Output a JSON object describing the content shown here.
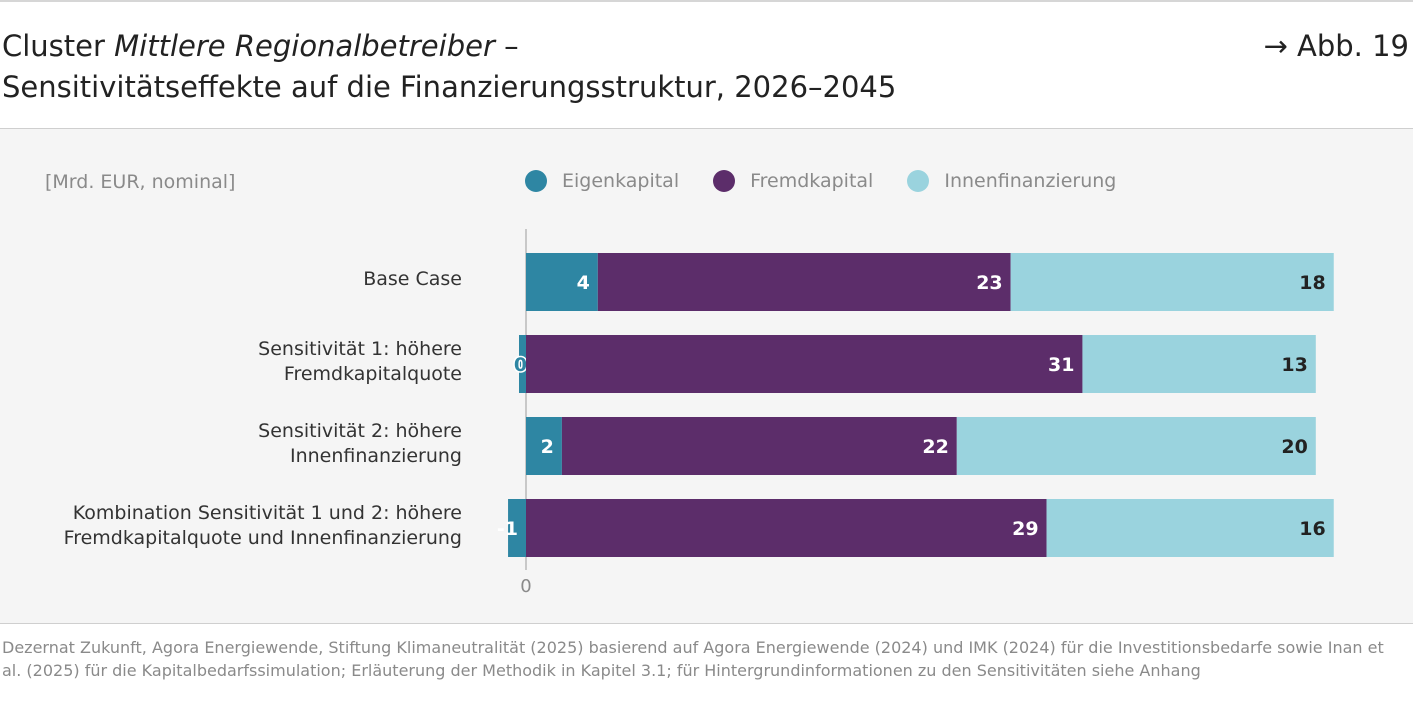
{
  "header": {
    "title_prefix": "Cluster ",
    "title_italic": "Mittlere Regionalbetreiber",
    "title_suffix": " –",
    "title_line2": "Sensitivitätseffekte auf die Finanzierungsstruktur, 2026–2045",
    "figure_ref": "→ Abb. 19"
  },
  "chart_data": {
    "type": "bar",
    "orientation": "horizontal",
    "stacked": true,
    "unit_label": "[Mrd. EUR, nominal]",
    "categories": [
      [
        "Base Case"
      ],
      [
        "Sensitivität 1: höhere",
        "Fremdkapitalquote"
      ],
      [
        "Sensitivität 2: höhere",
        "Innenfinanzierung"
      ],
      [
        "Kombination Sensitivität 1 und 2: höhere",
        "Fremdkapitalquote und Innenfinanzierung"
      ]
    ],
    "series": [
      {
        "name": "Eigenkapital",
        "color": "#2e86a3",
        "values": [
          4,
          0,
          2,
          -1
        ],
        "label_color": "#ffffff"
      },
      {
        "name": "Fremdkapital",
        "color": "#5c2d6a",
        "values": [
          23,
          31,
          22,
          29
        ],
        "label_color": "#ffffff"
      },
      {
        "name": "Innenfinanzierung",
        "color": "#9ad3de",
        "values": [
          18,
          13,
          20,
          16
        ],
        "label_color": "#222222"
      }
    ],
    "data_labels": [
      [
        "4",
        "23",
        "18"
      ],
      [
        "0",
        "31",
        "13"
      ],
      [
        "2",
        "22",
        "20"
      ],
      [
        "-1",
        "29",
        "16"
      ]
    ],
    "xlim": [
      -1,
      46
    ],
    "x_ticks": [
      "0"
    ],
    "legend": "top",
    "grid": false
  },
  "source": "Dezernat Zukunft, Agora Energiewende, Stiftung Klimaneutralität (2025) basierend auf Agora Energiewende (2024) und IMK (2024) für die Investitionsbedarfe sowie Inan et al. (2025) für die Kapitalbedarfssimulation; Erläuterung der Methodik in Kapitel 3.1; für Hintergrundinformationen zu den Sensitivitäten siehe Anhang"
}
